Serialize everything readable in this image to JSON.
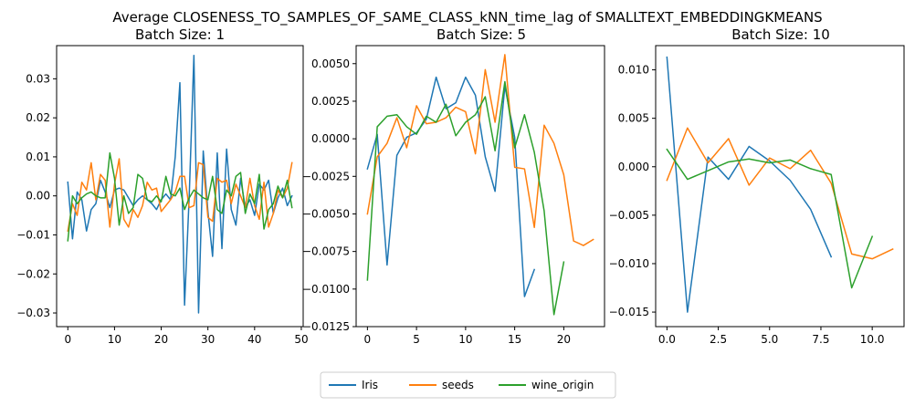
{
  "figure": {
    "suptitle": "Average CLOSENESS_TO_SAMPLES_OF_SAME_CLASS_kNN_time_lag of SMALLTEXT_EMBEDDINGKMEANS"
  },
  "colors": {
    "Iris": "#1f77b4",
    "seeds": "#ff7f0e",
    "wine_origin": "#2ca02c"
  },
  "legend": {
    "placement": "lower-center",
    "entries": [
      "Iris",
      "seeds",
      "wine_origin"
    ]
  },
  "chart_data": [
    {
      "type": "line",
      "title": "Batch Size: 1",
      "xlim": [
        -2.4,
        50.4
      ],
      "ylim": [
        -0.0335,
        0.0385
      ],
      "xticks": [
        0,
        10,
        20,
        30,
        40,
        50
      ],
      "xtick_labels": [
        "0",
        "10",
        "20",
        "30",
        "40",
        "50"
      ],
      "yticks": [
        -0.03,
        -0.02,
        -0.01,
        0.0,
        0.01,
        0.02,
        0.03
      ],
      "ytick_labels": [
        "−0.03",
        "−0.02",
        "−0.01",
        "0.00",
        "0.01",
        "0.02",
        "0.03"
      ],
      "series": [
        {
          "name": "Iris",
          "x": [
            0,
            1,
            2,
            3,
            4,
            5,
            6,
            7,
            8,
            9,
            10,
            11,
            12,
            13,
            14,
            15,
            16,
            17,
            18,
            19,
            20,
            21,
            22,
            23,
            24,
            25,
            26,
            27,
            28,
            29,
            30,
            31,
            32,
            33,
            34,
            35,
            36,
            37,
            38,
            39,
            40,
            41,
            42,
            43,
            44,
            45,
            46,
            47,
            48
          ],
          "y": [
            0.0035,
            -0.011,
            0.001,
            -0.001,
            -0.009,
            -0.0035,
            -0.002,
            0.004,
            0.001,
            -0.003,
            0.0015,
            0.002,
            0.0015,
            -0.0005,
            -0.0025,
            -0.001,
            0.0,
            -0.001,
            -0.002,
            -0.0035,
            -0.001,
            0.0005,
            -0.001,
            0.01,
            0.029,
            -0.028,
            0.0,
            0.036,
            -0.03,
            0.0115,
            -0.004,
            -0.0155,
            0.011,
            -0.0135,
            0.012,
            -0.0035,
            -0.0075,
            0.0045,
            -0.003,
            -0.001,
            -0.005,
            0.003,
            0.0015,
            0.004,
            -0.0045,
            -0.0005,
            0.002,
            -0.0025,
            0.0
          ]
        },
        {
          "name": "seeds",
          "x": [
            0,
            1,
            2,
            3,
            4,
            5,
            6,
            7,
            8,
            9,
            10,
            11,
            12,
            13,
            14,
            15,
            16,
            17,
            18,
            19,
            20,
            21,
            22,
            23,
            24,
            25,
            26,
            27,
            28,
            29,
            30,
            31,
            32,
            33,
            34,
            35,
            36,
            37,
            38,
            39,
            40,
            41,
            42,
            43,
            44,
            45,
            46,
            47,
            48
          ],
          "y": [
            -0.009,
            -0.002,
            -0.005,
            0.0035,
            0.0015,
            0.0085,
            -0.001,
            0.0055,
            0.004,
            -0.008,
            0.003,
            0.0095,
            -0.006,
            -0.008,
            -0.0035,
            -0.0055,
            -0.0025,
            0.0035,
            0.0015,
            0.002,
            -0.004,
            -0.0025,
            -0.001,
            0.001,
            0.005,
            0.005,
            -0.003,
            -0.0025,
            0.0085,
            0.008,
            -0.0055,
            -0.0065,
            0.0045,
            0.0035,
            0.004,
            -0.002,
            0.003,
            0.0,
            -0.003,
            0.0045,
            -0.0025,
            -0.006,
            0.0035,
            -0.008,
            -0.0045,
            0.0015,
            -0.0005,
            0.002,
            0.0085
          ]
        },
        {
          "name": "wine_origin",
          "x": [
            0,
            1,
            2,
            3,
            4,
            5,
            6,
            7,
            8,
            9,
            10,
            11,
            12,
            13,
            14,
            15,
            16,
            17,
            18,
            19,
            20,
            21,
            22,
            23,
            24,
            25,
            26,
            27,
            28,
            29,
            30,
            31,
            32,
            33,
            34,
            35,
            36,
            37,
            38,
            39,
            40,
            41,
            42,
            43,
            44,
            45,
            46,
            47,
            48
          ],
          "y": [
            -0.0115,
            0.0,
            -0.002,
            -0.0005,
            0.0005,
            0.001,
            0.0,
            -0.0005,
            -0.0005,
            0.011,
            0.0045,
            -0.0075,
            0.0,
            -0.0045,
            -0.003,
            0.0055,
            0.0045,
            -0.001,
            -0.0015,
            0.0,
            -0.0015,
            0.005,
            0.0005,
            0.0,
            0.002,
            -0.0035,
            -0.0005,
            0.0015,
            0.0005,
            -0.0005,
            -0.001,
            0.005,
            -0.0035,
            -0.0045,
            0.0015,
            0.0,
            0.005,
            0.006,
            -0.0045,
            0.0005,
            -0.002,
            0.0055,
            -0.0085,
            -0.0035,
            -0.002,
            0.0025,
            -0.0005,
            0.004,
            -0.003
          ]
        }
      ]
    },
    {
      "type": "line",
      "title": "Batch Size: 5",
      "xlim": [
        -1.15,
        24.15
      ],
      "ylim": [
        -0.0125,
        0.0062
      ],
      "xticks": [
        0,
        5,
        10,
        15,
        20
      ],
      "xtick_labels": [
        "0",
        "5",
        "10",
        "15",
        "20"
      ],
      "yticks": [
        -0.0125,
        -0.01,
        -0.0075,
        -0.005,
        -0.0025,
        0.0,
        0.0025,
        0.005
      ],
      "ytick_labels": [
        "−0.0125",
        "−0.0100",
        "−0.0075",
        "−0.0050",
        "−0.0025",
        "0.0000",
        "0.0025",
        "0.0050"
      ],
      "series": [
        {
          "name": "Iris",
          "x": [
            0,
            1,
            2,
            3,
            4,
            5,
            6,
            7,
            8,
            9,
            10,
            11,
            12,
            13,
            14,
            15,
            16,
            17
          ],
          "y": [
            -0.002,
            0.0003,
            -0.0084,
            -0.0011,
            0.0001,
            0.0004,
            0.0013,
            0.0041,
            0.002,
            0.0024,
            0.0041,
            0.0029,
            -0.0012,
            -0.0035,
            0.0035,
            0.0001,
            -0.0105,
            -0.0087
          ]
        },
        {
          "name": "seeds",
          "x": [
            0,
            1,
            2,
            3,
            4,
            5,
            6,
            7,
            8,
            9,
            10,
            11,
            12,
            13,
            14,
            15,
            16,
            17,
            18,
            19,
            20,
            21,
            22,
            23
          ],
          "y": [
            -0.005,
            -0.0012,
            -0.0003,
            0.0014,
            -0.0006,
            0.0022,
            0.001,
            0.0011,
            0.0014,
            0.0021,
            0.0018,
            -0.001,
            0.0046,
            0.0011,
            0.0056,
            -0.0019,
            -0.002,
            -0.0059,
            0.0009,
            -0.0003,
            -0.0024,
            -0.0068,
            -0.0071,
            -0.0067
          ]
        },
        {
          "name": "wine_origin",
          "x": [
            0,
            1,
            2,
            3,
            4,
            5,
            6,
            7,
            8,
            9,
            10,
            11,
            12,
            13,
            14,
            15,
            16,
            17,
            18,
            19,
            20
          ],
          "y": [
            -0.0094,
            0.0008,
            0.0015,
            0.0016,
            0.0008,
            0.0003,
            0.0015,
            0.0011,
            0.0023,
            0.0002,
            0.0011,
            0.0016,
            0.0028,
            -0.0008,
            0.0038,
            -0.0006,
            0.0016,
            -0.0009,
            -0.0048,
            -0.0117,
            -0.0082
          ]
        }
      ]
    },
    {
      "type": "line",
      "title": "Batch Size: 10",
      "xlim": [
        -0.55,
        11.55
      ],
      "ylim": [
        -0.0165,
        0.0125
      ],
      "xticks": [
        0,
        2.5,
        5,
        7.5,
        10
      ],
      "xtick_labels": [
        "0.0",
        "2.5",
        "5.0",
        "7.5",
        "10.0"
      ],
      "yticks": [
        -0.015,
        -0.01,
        -0.005,
        0.0,
        0.005,
        0.01
      ],
      "ytick_labels": [
        "−0.015",
        "−0.010",
        "−0.005",
        "0.000",
        "0.005",
        "0.010"
      ],
      "series": [
        {
          "name": "Iris",
          "x": [
            0,
            1,
            2,
            3,
            4,
            5,
            6,
            7,
            8
          ],
          "y": [
            0.0113,
            -0.015,
            0.001,
            -0.0013,
            0.0021,
            0.0006,
            -0.0014,
            -0.0044,
            -0.0093
          ]
        },
        {
          "name": "seeds",
          "x": [
            0,
            1,
            2,
            3,
            4,
            5,
            6,
            7,
            8,
            9,
            10,
            11
          ],
          "y": [
            -0.0014,
            0.004,
            0.0004,
            0.0029,
            -0.0019,
            0.0009,
            -0.0002,
            0.0017,
            -0.0017,
            -0.009,
            -0.0095,
            -0.0085
          ]
        },
        {
          "name": "wine_origin",
          "x": [
            0,
            1,
            2,
            3,
            4,
            5,
            6,
            7,
            8,
            9,
            10
          ],
          "y": [
            0.0018,
            -0.0013,
            -0.0004,
            0.0005,
            0.0008,
            0.0004,
            0.0007,
            -0.0002,
            -0.0008,
            -0.0125,
            -0.0072
          ]
        }
      ]
    }
  ]
}
